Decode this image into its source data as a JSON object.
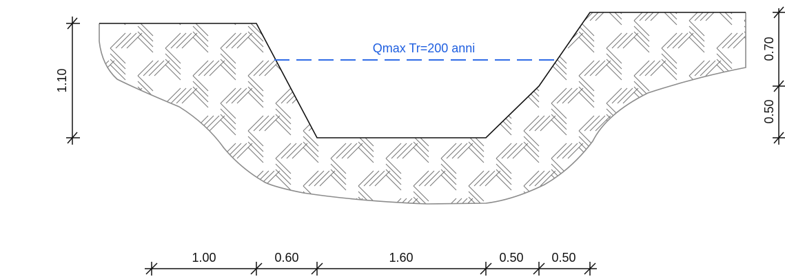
{
  "water_level": {
    "label": "Qmax Tr=200 anni",
    "color": "#2f6be6"
  },
  "dimensions": {
    "horizontal": [
      "1.00",
      "0.60",
      "1.60",
      "0.50",
      "0.50"
    ],
    "left_vertical": "1.10",
    "right_vertical_top": "0.70",
    "right_vertical_bottom": "0.50"
  },
  "colors": {
    "ground_outline": "#8c8c8c",
    "hatch": "#7a7a7a",
    "channel_outline": "#111111",
    "dimension_lines": "#111111"
  }
}
